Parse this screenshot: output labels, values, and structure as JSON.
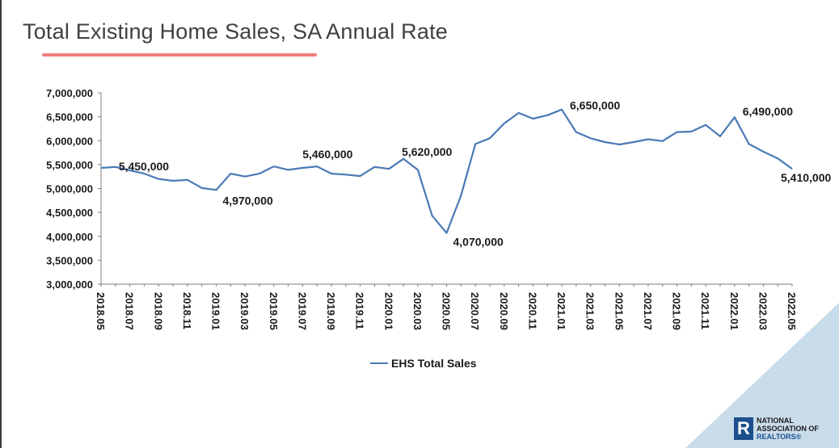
{
  "title": "Total Existing Home Sales, SA Annual Rate",
  "colors": {
    "series_line": "#4a7ab5",
    "title_underline": "#ef7f7f",
    "corner_triangle": "#c9dcea",
    "logo_blue": "#1c4f8c"
  },
  "logo": {
    "mark": "R",
    "line1": "NATIONAL",
    "line2": "ASSOCIATION OF",
    "line3": "REALTORS",
    "registered": "®"
  },
  "chart_data": {
    "type": "line",
    "title": "Total Existing Home Sales, SA Annual Rate",
    "xlabel": "",
    "ylabel": "",
    "ylim": [
      3000000,
      7000000
    ],
    "y_ticks": [
      3000000,
      3500000,
      4000000,
      4500000,
      5000000,
      5500000,
      6000000,
      6500000,
      7000000
    ],
    "y_tick_labels": [
      "3,000,000",
      "3,500,000",
      "4,000,000",
      "4,500,000",
      "5,000,000",
      "5,500,000",
      "6,000,000",
      "6,500,000",
      "7,000,000"
    ],
    "grid": false,
    "legend_position": "bottom",
    "x": [
      "2018.05",
      "2018.06",
      "2018.07",
      "2018.08",
      "2018.09",
      "2018.10",
      "2018.11",
      "2018.12",
      "2019.01",
      "2019.02",
      "2019.03",
      "2019.04",
      "2019.05",
      "2019.06",
      "2019.07",
      "2019.08",
      "2019.09",
      "2019.10",
      "2019.11",
      "2019.12",
      "2020.01",
      "2020.02",
      "2020.03",
      "2020.04",
      "2020.05",
      "2020.06",
      "2020.07",
      "2020.08",
      "2020.09",
      "2020.10",
      "2020.11",
      "2020.12",
      "2021.01",
      "2021.02",
      "2021.03",
      "2021.04",
      "2021.05",
      "2021.06",
      "2021.07",
      "2021.08",
      "2021.09",
      "2021.10",
      "2021.11",
      "2021.12",
      "2022.01",
      "2022.02",
      "2022.03",
      "2022.04",
      "2022.05"
    ],
    "x_tick_labels": [
      "2018.05",
      "2018.07",
      "2018.09",
      "2018.11",
      "2019.01",
      "2019.03",
      "2019.05",
      "2019.07",
      "2019.09",
      "2019.11",
      "2020.01",
      "2020.03",
      "2020.05",
      "2020.07",
      "2020.09",
      "2020.11",
      "2021.01",
      "2021.03",
      "2021.05",
      "2021.07",
      "2021.09",
      "2021.11",
      "2022.01",
      "2022.03",
      "2022.05"
    ],
    "series": [
      {
        "name": "EHS Total Sales",
        "values": [
          5430000,
          5450000,
          5380000,
          5310000,
          5200000,
          5160000,
          5180000,
          5010000,
          4970000,
          5310000,
          5250000,
          5310000,
          5460000,
          5390000,
          5430000,
          5460000,
          5310000,
          5290000,
          5260000,
          5450000,
          5410000,
          5620000,
          5390000,
          4430000,
          4070000,
          4850000,
          5930000,
          6050000,
          6360000,
          6580000,
          6460000,
          6530000,
          6650000,
          6180000,
          6050000,
          5970000,
          5920000,
          5970000,
          6030000,
          5990000,
          6180000,
          6190000,
          6330000,
          6090000,
          6490000,
          5930000,
          5770000,
          5630000,
          5410000
        ]
      }
    ],
    "annotations": [
      {
        "index": 1,
        "label": "5,450,000"
      },
      {
        "index": 8,
        "label": "4,970,000"
      },
      {
        "index": 15,
        "label": "5,460,000"
      },
      {
        "index": 21,
        "label": "5,620,000"
      },
      {
        "index": 24,
        "label": "4,070,000"
      },
      {
        "index": 32,
        "label": "6,650,000"
      },
      {
        "index": 44,
        "label": "6,490,000"
      },
      {
        "index": 48,
        "label": "5,410,000"
      }
    ]
  }
}
